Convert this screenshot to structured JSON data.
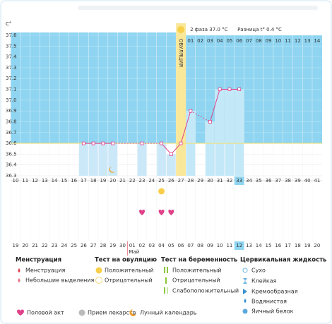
{
  "chart_data": {
    "type": "line",
    "y_unit": "C°",
    "days": [
      10,
      11,
      12,
      13,
      14,
      15,
      16,
      17,
      18,
      19,
      20,
      21,
      22,
      23,
      24,
      25,
      26,
      27,
      28,
      29,
      30,
      31,
      32,
      33,
      34,
      35,
      36,
      37,
      38,
      39,
      40,
      41
    ],
    "dates": [
      {
        "label": "19",
        "weekend": false
      },
      {
        "label": "20",
        "weekend": false
      },
      {
        "label": "21",
        "weekend": false
      },
      {
        "label": "22",
        "weekend": false
      },
      {
        "label": "23",
        "weekend": true
      },
      {
        "label": "24",
        "weekend": true
      },
      {
        "label": "25",
        "weekend": false
      },
      {
        "label": "26",
        "weekend": false
      },
      {
        "label": "27",
        "weekend": false
      },
      {
        "label": "28",
        "weekend": false
      },
      {
        "label": "29",
        "weekend": false
      },
      {
        "label": "30",
        "weekend": true
      },
      {
        "label": "01",
        "weekend": false
      },
      {
        "label": "02",
        "weekend": false
      },
      {
        "label": "03",
        "weekend": false
      },
      {
        "label": "04",
        "weekend": false
      },
      {
        "label": "05",
        "weekend": false
      },
      {
        "label": "06",
        "weekend": false
      },
      {
        "label": "07",
        "weekend": true
      },
      {
        "label": "08",
        "weekend": true
      },
      {
        "label": "09",
        "weekend": false
      },
      {
        "label": "10",
        "weekend": false
      },
      {
        "label": "11",
        "weekend": false
      },
      {
        "label": "12",
        "weekend": false
      },
      {
        "label": "13",
        "weekend": false
      },
      {
        "label": "14",
        "weekend": true
      },
      {
        "label": "15",
        "weekend": true
      },
      {
        "label": "16",
        "weekend": false
      },
      {
        "label": "17",
        "weekend": false
      },
      {
        "label": "18",
        "weekend": false
      },
      {
        "label": "19",
        "weekend": false
      },
      {
        "label": "20",
        "weekend": false
      }
    ],
    "month_label": "Май",
    "month_start_day": 22,
    "temperatures": [
      null,
      null,
      null,
      null,
      null,
      null,
      null,
      36.6,
      36.6,
      36.6,
      36.6,
      null,
      null,
      36.6,
      null,
      36.6,
      36.5,
      36.6,
      36.9,
      null,
      36.8,
      37.1,
      37.1,
      37.1,
      null,
      null,
      null,
      null,
      null,
      null,
      null,
      null
    ],
    "ylim": [
      36.3,
      37.6
    ],
    "yticks": [
      36.3,
      36.4,
      36.5,
      36.6,
      36.7,
      36.8,
      36.9,
      {
        "value": 37,
        "label": "37.0"
      },
      37.1,
      37.2,
      37.3,
      37.4,
      37.5,
      37.6
    ],
    "coverline": 36.6,
    "line_color": "#e0428a",
    "ovulation_day": 27,
    "ovulation_label": "ОВУЛЯЦИЯ",
    "phase2_title": "2 фаза 37.0 °C",
    "phase2_difference": "Разница t° 0.4 °C",
    "phase2_day_labels": [
      "01",
      "02",
      "03",
      "04",
      "05",
      "06",
      "07",
      "08",
      "09",
      "10",
      "11",
      "12",
      "13",
      "14"
    ],
    "highlight_day": 33,
    "ovulation_test_positive_days": [
      25
    ],
    "intercourse_days": [
      23,
      25,
      26
    ],
    "moon_days": [
      20
    ]
  },
  "legend": {
    "menstruation": {
      "title": "Менструация",
      "items": [
        "Менструация",
        "Небольшие выделения"
      ]
    },
    "ovulation_test": {
      "title": "Тест на овуляцию",
      "items": [
        "Положительный",
        "Отрицательный"
      ]
    },
    "pregnancy_test": {
      "title": "Тест на беременность",
      "items": [
        "Положительный",
        "Отрицательный",
        "Слабоположительный"
      ]
    },
    "cervical_fluid": {
      "title": "Цервикальная жидкость",
      "items": [
        "Сухо",
        "Клейкая",
        "Кремообразная",
        "Водянистая",
        "Яичный белок"
      ]
    },
    "other": [
      "Половой акт",
      "Прием лекарств",
      "Лунный календарь"
    ]
  }
}
